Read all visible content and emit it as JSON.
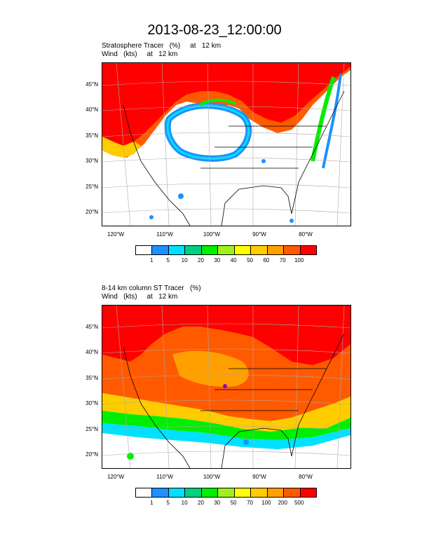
{
  "title": "2013-08-23_12:00:00",
  "panels": [
    {
      "subtitle_line1": "Stratosphere Tracer   (%)     at   12 km",
      "subtitle_line2": "Wind   (kts)     at   12 km",
      "lat_ticks": [
        "45°N",
        "40°N",
        "35°N",
        "30°N",
        "25°N",
        "20°N"
      ],
      "lon_ticks": [
        "120°W",
        "110°W",
        "100°W",
        "90°W",
        "80°W"
      ],
      "colorbar_labels": [
        "1",
        "5",
        "10",
        "20",
        "30",
        "40",
        "50",
        "60",
        "70",
        "100"
      ],
      "colorbar_colors": [
        "#ffffff",
        "#1e90ff",
        "#00e0ff",
        "#00d080",
        "#00ee00",
        "#a0f020",
        "#ffff00",
        "#ffcc00",
        "#ffa000",
        "#ff5a00",
        "#ff0000"
      ]
    },
    {
      "subtitle_line1": "8-14 km column ST Tracer   (%)",
      "subtitle_line2": "Wind   (kts)     at   12 km",
      "lat_ticks": [
        "45°N",
        "40°N",
        "35°N",
        "30°N",
        "25°N",
        "20°N"
      ],
      "lon_ticks": [
        "120°W",
        "110°W",
        "100°W",
        "90°W",
        "80°W"
      ],
      "colorbar_labels": [
        "1",
        "5",
        "10",
        "20",
        "30",
        "50",
        "70",
        "100",
        "200",
        "500"
      ],
      "colorbar_colors": [
        "#ffffff",
        "#1e90ff",
        "#00e0ff",
        "#00d080",
        "#00ee00",
        "#a0f020",
        "#ffff00",
        "#ffcc00",
        "#ffa000",
        "#ff5a00",
        "#ff0000"
      ]
    }
  ]
}
